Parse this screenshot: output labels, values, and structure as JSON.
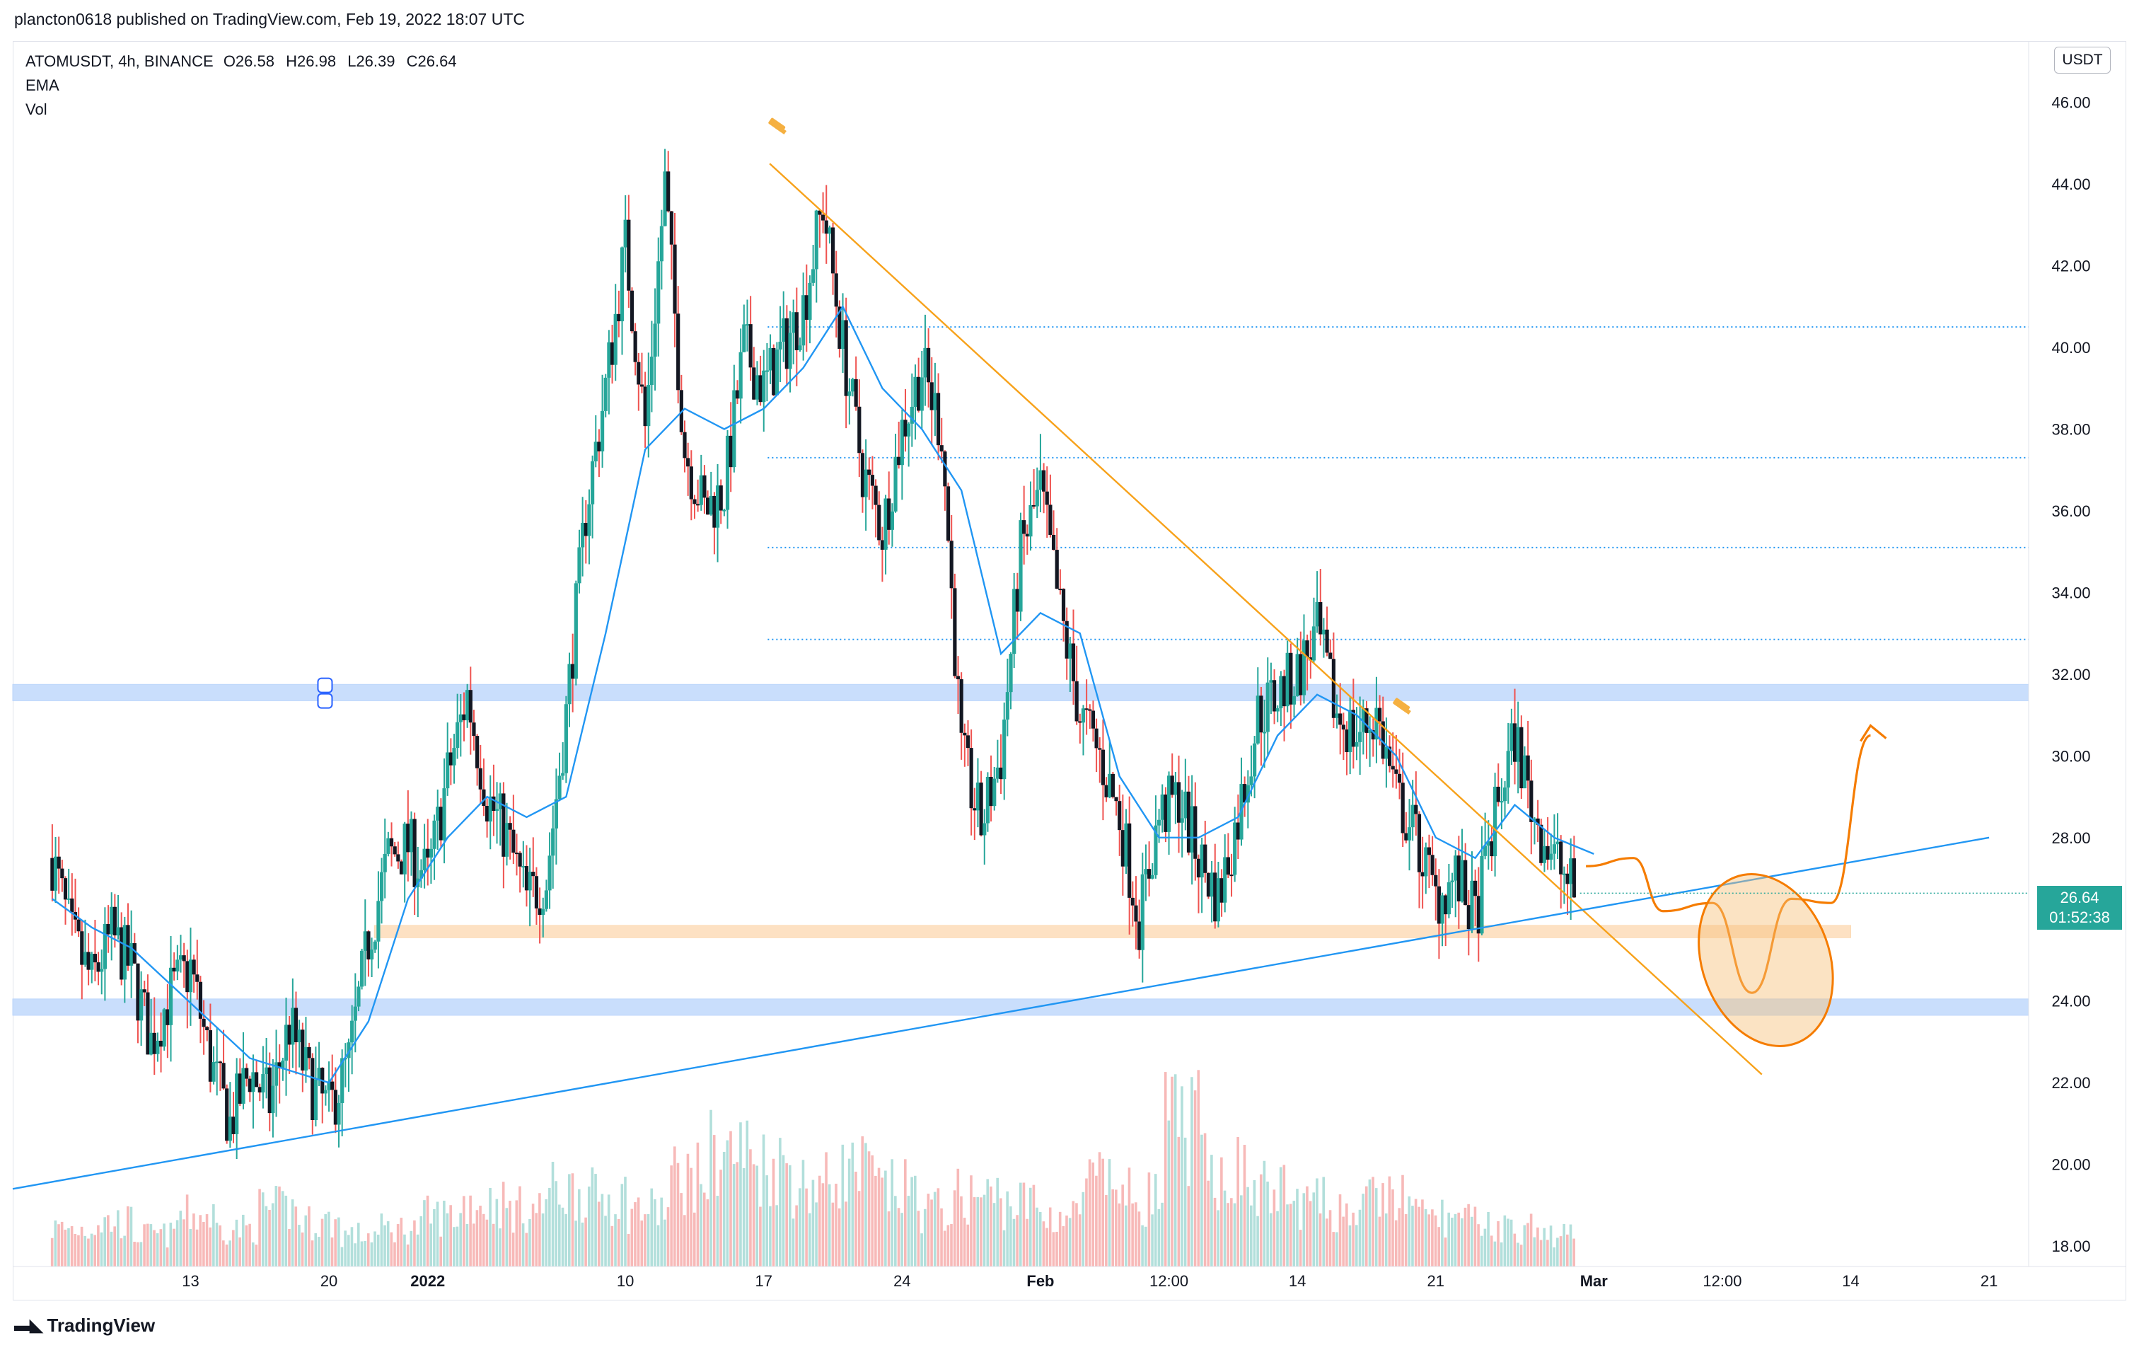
{
  "header": {
    "published_line": "plancton0618 published on TradingView.com, Feb 19, 2022 18:07 UTC"
  },
  "legend": {
    "symbol": "ATOMUSDT, 4h, BINANCE",
    "open": "O26.58",
    "high": "H26.98",
    "low": "L26.39",
    "close": "C26.64",
    "indicator_1": "EMA",
    "indicator_2": "Vol"
  },
  "price_scale": {
    "currency": "USDT",
    "last_price": "26.64",
    "countdown": "01:52:38"
  },
  "footer": {
    "brand": "TradingView"
  },
  "colors": {
    "up": "#26a69a",
    "down": "#ef5350",
    "ema": "#2196f3",
    "wedge_top": "#f7a21b",
    "trend_bottom": "#2196f3",
    "blue_zone": "#bbd6fb",
    "orange_zone": "#fcd9b4",
    "forecast": "#f57c00",
    "dotted_level": "#2196f3"
  },
  "chart_data": {
    "type": "candlestick",
    "symbol": "ATOMUSDT",
    "timeframe": "4h",
    "exchange": "BINANCE",
    "ylim": [
      17.5,
      47.5
    ],
    "y_ticks": [
      "46.00",
      "44.00",
      "42.00",
      "40.00",
      "38.00",
      "36.00",
      "34.00",
      "32.00",
      "30.00",
      "28.00",
      "26.00",
      "24.00",
      "22.00",
      "20.00",
      "18.00"
    ],
    "y_tick_values": [
      46,
      44,
      42,
      40,
      38,
      36,
      34,
      32,
      30,
      28,
      26,
      24,
      22,
      20,
      18
    ],
    "x_ticks": [
      {
        "label": "13",
        "day": 13,
        "bold": false
      },
      {
        "label": "20",
        "day": 20,
        "bold": false
      },
      {
        "label": "2022",
        "day": 25,
        "bold": true
      },
      {
        "label": "10",
        "day": 35,
        "bold": false
      },
      {
        "label": "17",
        "day": 42,
        "bold": false
      },
      {
        "label": "24",
        "day": 49,
        "bold": false
      },
      {
        "label": "Feb",
        "day": 56,
        "bold": true
      },
      {
        "label": "12:00",
        "day": 62.5,
        "bold": false
      },
      {
        "label": "14",
        "day": 69,
        "bold": false
      },
      {
        "label": "21",
        "day": 76,
        "bold": false
      },
      {
        "label": "Mar",
        "day": 84,
        "bold": true
      },
      {
        "label": "12:00",
        "day": 90.5,
        "bold": false
      },
      {
        "label": "14",
        "day": 97,
        "bold": false
      },
      {
        "label": "21",
        "day": 104,
        "bold": false
      }
    ],
    "price_path": [
      [
        6,
        27.5
      ],
      [
        7,
        25.5
      ],
      [
        8,
        24.5
      ],
      [
        9,
        25.6
      ],
      [
        10,
        24.8
      ],
      [
        11,
        23.0
      ],
      [
        12,
        24.2
      ],
      [
        13,
        24.8
      ],
      [
        14,
        22.5
      ],
      [
        15,
        21.0
      ],
      [
        16,
        22.3
      ],
      [
        17,
        21.5
      ],
      [
        18,
        23.4
      ],
      [
        19,
        22.0
      ],
      [
        20,
        21.3
      ],
      [
        21,
        22.5
      ],
      [
        22,
        25.5
      ],
      [
        23,
        27.5
      ],
      [
        24,
        27.8
      ],
      [
        25,
        27.0
      ],
      [
        26,
        29.5
      ],
      [
        27,
        31.5
      ],
      [
        28,
        29.0
      ],
      [
        29,
        28.0
      ],
      [
        30,
        26.5
      ],
      [
        31,
        27.0
      ],
      [
        32,
        31.0
      ],
      [
        33,
        36.0
      ],
      [
        34,
        39.0
      ],
      [
        35,
        42.5
      ],
      [
        36,
        38.0
      ],
      [
        37,
        44.0
      ],
      [
        38,
        37.5
      ],
      [
        39,
        36.0
      ],
      [
        40,
        36.5
      ],
      [
        41,
        40.0
      ],
      [
        42,
        39.0
      ],
      [
        43,
        40.0
      ],
      [
        44,
        41.0
      ],
      [
        45,
        43.5
      ],
      [
        46,
        40.0
      ],
      [
        47,
        37.0
      ],
      [
        48,
        35.5
      ],
      [
        49,
        38.0
      ],
      [
        50,
        39.5
      ],
      [
        51,
        38.0
      ],
      [
        52,
        30.0
      ],
      [
        53,
        28.3
      ],
      [
        54,
        30.0
      ],
      [
        55,
        35.0
      ],
      [
        56,
        36.5
      ],
      [
        57,
        33.5
      ],
      [
        58,
        31.0
      ],
      [
        59,
        30.0
      ],
      [
        60,
        28.5
      ],
      [
        61,
        26.0
      ],
      [
        62,
        28.5
      ],
      [
        63,
        29.0
      ],
      [
        64,
        27.5
      ],
      [
        65,
        26.5
      ],
      [
        66,
        28.5
      ],
      [
        67,
        31.0
      ],
      [
        68,
        31.5
      ],
      [
        69,
        32.0
      ],
      [
        70,
        33.0
      ],
      [
        71,
        31.0
      ],
      [
        72,
        30.5
      ],
      [
        73,
        31.0
      ],
      [
        74,
        29.0
      ],
      [
        75,
        28.0
      ],
      [
        76,
        26.5
      ],
      [
        77,
        27.0
      ],
      [
        78,
        26.0
      ],
      [
        79,
        28.5
      ],
      [
        80,
        30.5
      ],
      [
        81,
        28.5
      ],
      [
        82,
        27.5
      ],
      [
        83,
        26.64
      ]
    ],
    "ema_path": [
      [
        6,
        26.5
      ],
      [
        8,
        25.8
      ],
      [
        10,
        25.3
      ],
      [
        12,
        24.4
      ],
      [
        14,
        23.5
      ],
      [
        16,
        22.6
      ],
      [
        18,
        22.3
      ],
      [
        20,
        22.0
      ],
      [
        22,
        23.5
      ],
      [
        24,
        26.5
      ],
      [
        26,
        28.0
      ],
      [
        28,
        29.0
      ],
      [
        30,
        28.5
      ],
      [
        32,
        29.0
      ],
      [
        34,
        33.0
      ],
      [
        36,
        37.5
      ],
      [
        38,
        38.5
      ],
      [
        40,
        38.0
      ],
      [
        42,
        38.5
      ],
      [
        44,
        39.5
      ],
      [
        46,
        41.0
      ],
      [
        48,
        39.0
      ],
      [
        50,
        38.0
      ],
      [
        52,
        36.5
      ],
      [
        54,
        32.5
      ],
      [
        56,
        33.5
      ],
      [
        58,
        33.0
      ],
      [
        60,
        29.5
      ],
      [
        62,
        28.0
      ],
      [
        64,
        28.0
      ],
      [
        66,
        28.5
      ],
      [
        68,
        30.5
      ],
      [
        70,
        31.5
      ],
      [
        72,
        31.0
      ],
      [
        74,
        30.0
      ],
      [
        76,
        28.0
      ],
      [
        78,
        27.5
      ],
      [
        80,
        28.8
      ],
      [
        82,
        28.0
      ],
      [
        84,
        27.6
      ]
    ],
    "volume_path": [
      0.6,
      0.7,
      0.5,
      0.8,
      0.6,
      0.9,
      0.7,
      0.5,
      0.6,
      0.8,
      1.0,
      0.9,
      1.2,
      1.1,
      0.9,
      1.4,
      1.8,
      1.6,
      1.3,
      1.5,
      1.2,
      0.9,
      1.1,
      1.0,
      0.8,
      1.3,
      1.1,
      2.2,
      1.5,
      1.2,
      1.0,
      0.9,
      1.1,
      0.8,
      0.7,
      0.6,
      0.5,
      0.4
    ],
    "levels": {
      "blue_zone_upper": [
        31.35,
        31.75
      ],
      "blue_zone_lower": [
        23.65,
        24.05
      ],
      "orange_zone": [
        25.55,
        25.85
      ],
      "dotted_levels": [
        40.5,
        37.3,
        35.1,
        32.85
      ]
    },
    "descending_trendline": {
      "from": [
        42.3,
        44.5
      ],
      "to": [
        92.5,
        22.2
      ]
    },
    "ascending_trendline": {
      "from": [
        4,
        19.4
      ],
      "to": [
        104,
        28.0
      ]
    },
    "forecast_path": [
      [
        83.6,
        27.3
      ],
      [
        86,
        27.5
      ],
      [
        87.5,
        26.2
      ],
      [
        90,
        26.4
      ],
      [
        92,
        24.2
      ],
      [
        94,
        26.5
      ],
      [
        96,
        26.4
      ],
      [
        98,
        30.5
      ]
    ],
    "last_price": 26.64
  }
}
